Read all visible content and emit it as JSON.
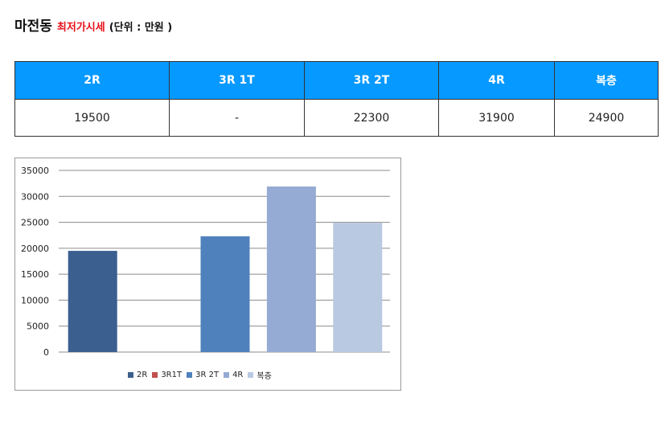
{
  "header": {
    "title": "마전동",
    "subtitle": "최저가시세",
    "unit": "(단위 : 만원 )"
  },
  "table": {
    "columns": [
      "2R",
      "3R 1T",
      "3R 2T",
      "4R",
      "복층"
    ],
    "values": [
      "19500",
      "-",
      "22300",
      "31900",
      "24900"
    ]
  },
  "chart_data": {
    "type": "bar",
    "categories": [
      "2R",
      "3R1T",
      "3R 2T",
      "4R",
      "복층"
    ],
    "values": [
      19500,
      0,
      22300,
      31900,
      24900
    ],
    "title": "",
    "xlabel": "",
    "ylabel": "",
    "ylim": [
      0,
      35000
    ],
    "yticks": [
      "35000",
      "30000",
      "25000",
      "20000",
      "15000",
      "10000",
      "5000",
      "0"
    ],
    "grid": true,
    "legend_position": "bottom",
    "colors": [
      "#3b5f8e",
      "#c0504d",
      "#4f81bd",
      "#95abd3",
      "#b9c9e2"
    ]
  }
}
